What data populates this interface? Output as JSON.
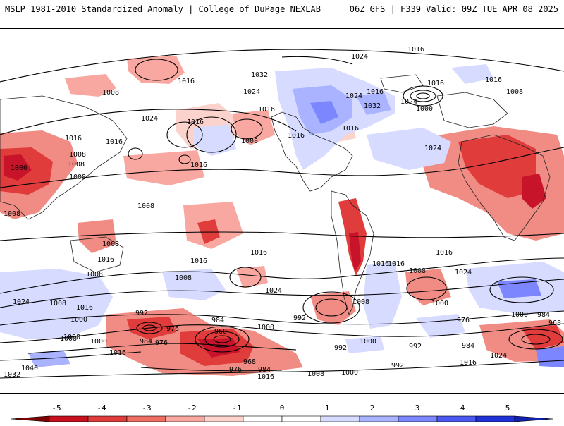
{
  "header": {
    "left": "MSLP 1981-2010 Standardized Anomaly | College of DuPage NEXLAB",
    "right": "06Z GFS | F339 Valid: 09Z TUE APR 08 2025"
  },
  "isobar_labels": [
    "1016",
    "1024",
    "1032",
    "1016",
    "1024",
    "1016",
    "1016",
    "1008",
    "1016",
    "1008",
    "1024",
    "1016",
    "1000",
    "1016",
    "1016",
    "1008",
    "1016",
    "1024",
    "1032",
    "1008",
    "1024",
    "1016",
    "1008",
    "1016",
    "1016",
    "1008",
    "1000",
    "1008",
    "1008",
    "1016",
    "1016",
    "1008",
    "1008",
    "1016",
    "1008",
    "1024",
    "1024",
    "1016",
    "1024",
    "1008",
    "1016",
    "1016",
    "1008",
    "1000",
    "992",
    "1024",
    "1008",
    "1016",
    "1000",
    "1008",
    "984",
    "976",
    "960",
    "1000",
    "992",
    "992",
    "968",
    "976",
    "1000",
    "984",
    "1016",
    "1040",
    "1032",
    "1008",
    "976",
    "984",
    "1016",
    "1008",
    "1000",
    "992",
    "992",
    "1000",
    "976",
    "1000",
    "984",
    "968",
    "984",
    "1024",
    "1016"
  ],
  "colorbar": {
    "ticks": [
      "-5",
      "-4",
      "-3",
      "-2",
      "-1",
      "0",
      "1",
      "2",
      "3",
      "4",
      "5"
    ],
    "colors": [
      "#7f0000",
      "#c80f1e",
      "#e03c3c",
      "#ef6e64",
      "#f8a8a0",
      "#fbd2cc",
      "#ffffff",
      "#ffffff",
      "#d6dbff",
      "#aab3ff",
      "#7b86ff",
      "#4a57f0",
      "#2030d8",
      "#1020b0"
    ]
  },
  "legend": {
    "anomaly_colors": {
      "strong_negative": "#c8142a",
      "negative": "#f08c84",
      "weak_negative": "#fbd0ca",
      "weak_positive": "#d8dcff",
      "positive": "#8c96f5",
      "strong_positive": "#3040e0"
    }
  }
}
